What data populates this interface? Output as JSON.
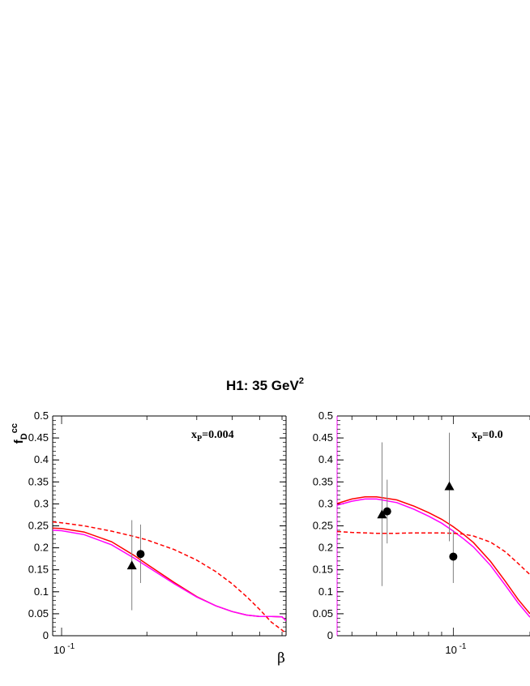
{
  "figure": {
    "title": "H1: 35 GeV",
    "title_sup": "2"
  },
  "chart_data": [
    {
      "type": "line",
      "ylabel": "f",
      "ylabel_sub": "D",
      "ylabel_sup": "cc",
      "xlabel": "β",
      "annotation": "x",
      "annotation_sub": "P",
      "annotation_value": "=0.004",
      "x_scale": "log",
      "xlim": [
        0.093,
        0.62
      ],
      "ylim": [
        0,
        0.5
      ],
      "y_ticks": [
        0,
        0.05,
        0.1,
        0.15,
        0.2,
        0.25,
        0.3,
        0.35,
        0.4,
        0.45,
        0.5
      ],
      "y_tick_labels": [
        "0",
        "0.05",
        "0.1",
        "0.15",
        "0.2",
        "0.25",
        "0.3",
        "0.35",
        "0.4",
        "0.45",
        "0.5"
      ],
      "x_tick_labels": [
        {
          "x": 0.1,
          "base": "10",
          "exp": "-1"
        }
      ],
      "grid": false,
      "series": [
        {
          "style": "solid",
          "color": "#ff0000",
          "x": [
            0.093,
            0.1,
            0.12,
            0.15,
            0.18,
            0.2,
            0.25,
            0.3,
            0.35,
            0.4,
            0.45,
            0.5,
            0.55,
            0.6,
            0.62
          ],
          "y": [
            0.245,
            0.244,
            0.236,
            0.214,
            0.183,
            0.163,
            0.121,
            0.089,
            0.068,
            0.055,
            0.047,
            0.044,
            0.044,
            0.043,
            0.034
          ]
        },
        {
          "style": "solid",
          "color": "#ff00ff",
          "x": [
            0.093,
            0.1,
            0.12,
            0.15,
            0.18,
            0.2,
            0.25,
            0.3,
            0.35,
            0.4,
            0.45,
            0.5,
            0.55,
            0.6,
            0.62
          ],
          "y": [
            0.24,
            0.239,
            0.23,
            0.207,
            0.177,
            0.158,
            0.118,
            0.088,
            0.068,
            0.055,
            0.047,
            0.044,
            0.044,
            0.043,
            0.034
          ]
        },
        {
          "style": "dashed",
          "color": "#ff0000",
          "x": [
            0.093,
            0.1,
            0.12,
            0.15,
            0.18,
            0.2,
            0.25,
            0.3,
            0.35,
            0.4,
            0.45,
            0.5,
            0.55,
            0.6,
            0.62
          ],
          "y": [
            0.259,
            0.257,
            0.25,
            0.238,
            0.226,
            0.218,
            0.196,
            0.172,
            0.146,
            0.118,
            0.089,
            0.06,
            0.031,
            0.013,
            0.005
          ]
        }
      ],
      "points": [
        {
          "marker": "triangle",
          "x": 0.177,
          "y": 0.16,
          "err_low": 0.058,
          "err_high": 0.263
        },
        {
          "marker": "circle",
          "x": 0.19,
          "y": 0.186,
          "err_low": 0.12,
          "err_high": 0.253
        }
      ]
    },
    {
      "type": "line",
      "annotation": "x",
      "annotation_sub": "P",
      "annotation_value": "=0.0",
      "x_scale": "log",
      "xlim": [
        0.035,
        0.2
      ],
      "ylim": [
        0,
        0.5
      ],
      "y_ticks": [
        0,
        0.05,
        0.1,
        0.15,
        0.2,
        0.25,
        0.3,
        0.35,
        0.4,
        0.45,
        0.5
      ],
      "y_tick_labels": [
        "0",
        "0.05",
        "0.1",
        "0.15",
        "0.2",
        "0.25",
        "0.3",
        "0.35",
        "0.4",
        "0.45",
        "0.5"
      ],
      "x_tick_labels": [
        {
          "x": 0.1,
          "base": "10",
          "exp": "-1"
        }
      ],
      "grid": false,
      "series": [
        {
          "style": "solid",
          "color": "#ff0000",
          "x": [
            0.035,
            0.04,
            0.045,
            0.05,
            0.06,
            0.07,
            0.08,
            0.09,
            0.1,
            0.11,
            0.12,
            0.14,
            0.16,
            0.18,
            0.2
          ],
          "y": [
            0.301,
            0.311,
            0.316,
            0.316,
            0.309,
            0.295,
            0.28,
            0.265,
            0.248,
            0.23,
            0.212,
            0.169,
            0.124,
            0.082,
            0.05
          ]
        },
        {
          "style": "solid",
          "color": "#ff00ff",
          "x": [
            0.035,
            0.04,
            0.045,
            0.05,
            0.06,
            0.07,
            0.08,
            0.09,
            0.1,
            0.11,
            0.12,
            0.14,
            0.16,
            0.18,
            0.2
          ],
          "y": [
            0.297,
            0.306,
            0.311,
            0.311,
            0.303,
            0.288,
            0.272,
            0.256,
            0.238,
            0.22,
            0.202,
            0.16,
            0.115,
            0.074,
            0.042
          ]
        },
        {
          "style": "dashed",
          "color": "#ff0000",
          "x": [
            0.035,
            0.04,
            0.05,
            0.06,
            0.07,
            0.08,
            0.09,
            0.1,
            0.11,
            0.12,
            0.14,
            0.16,
            0.18,
            0.2
          ],
          "y": [
            0.237,
            0.235,
            0.233,
            0.233,
            0.234,
            0.234,
            0.234,
            0.233,
            0.231,
            0.227,
            0.213,
            0.191,
            0.164,
            0.139
          ]
        }
      ],
      "points": [
        {
          "marker": "triangle",
          "x": 0.0525,
          "y": 0.276,
          "err_low": 0.113,
          "err_high": 0.44
        },
        {
          "marker": "circle",
          "x": 0.055,
          "y": 0.283,
          "err_low": 0.21,
          "err_high": 0.355
        },
        {
          "marker": "triangle",
          "x": 0.0965,
          "y": 0.34,
          "err_low": 0.215,
          "err_high": 0.462
        },
        {
          "marker": "circle",
          "x": 0.1,
          "y": 0.18,
          "err_low": 0.12,
          "err_high": 0.24
        }
      ]
    }
  ]
}
